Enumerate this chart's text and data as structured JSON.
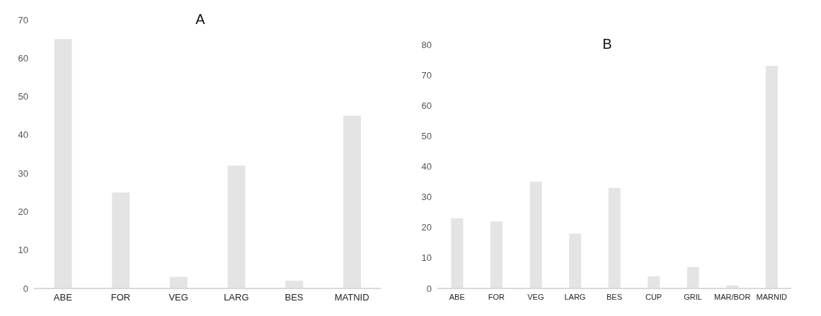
{
  "chart_data": [
    {
      "type": "bar",
      "title": "A",
      "categories": [
        "ABE",
        "FOR",
        "VEG",
        "LARG",
        "BES",
        "MATNID"
      ],
      "values": [
        65,
        25,
        3,
        32,
        2,
        45
      ],
      "color": "#e4e4e4",
      "ylim": [
        0,
        70
      ],
      "yticks": [
        0,
        10,
        20,
        30,
        40,
        50,
        60,
        70
      ],
      "grid": false
    },
    {
      "type": "bar",
      "title": "B",
      "categories": [
        "ABE",
        "FOR",
        "VEG",
        "LARG",
        "BES",
        "CUP",
        "GRIL",
        "MAR/BOR",
        "MARNID"
      ],
      "values": [
        23,
        22,
        35,
        18,
        33,
        4,
        7,
        1,
        73
      ],
      "color": "#e4e4e4",
      "ylim": [
        0,
        80
      ],
      "yticks": [
        0,
        10,
        20,
        30,
        40,
        50,
        60,
        70,
        80
      ],
      "grid": false
    }
  ]
}
